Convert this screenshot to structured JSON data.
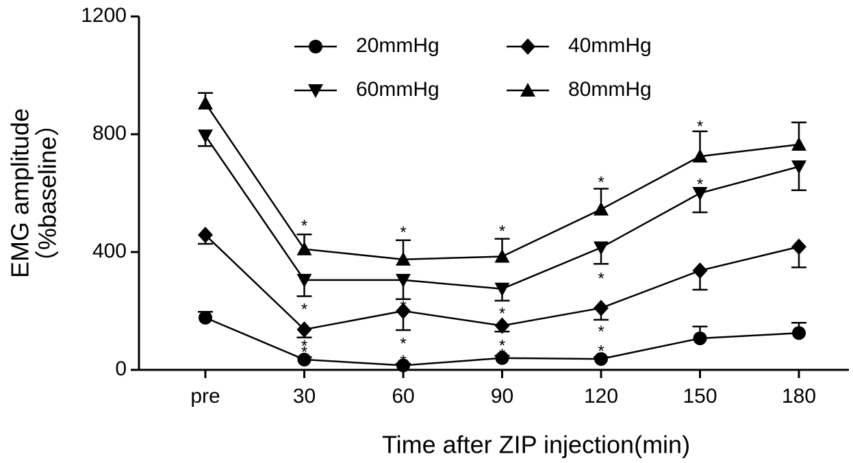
{
  "chart_data": {
    "type": "line",
    "x_label": "Time after ZIP injection(min)",
    "y_label": [
      "EMG amplitude",
      "（%baseline）"
    ],
    "categories": [
      "pre",
      "30",
      "60",
      "90",
      "120",
      "150",
      "180"
    ],
    "ylim": [
      0,
      1200
    ],
    "yticks": [
      0,
      400,
      800,
      1200
    ],
    "series": [
      {
        "name": "20mmHg",
        "color": "#000000",
        "marker": "circle",
        "error_side": "up",
        "values": [
          177,
          35,
          15,
          40,
          37,
          107,
          125
        ],
        "errors": [
          20,
          8,
          6,
          8,
          6,
          40,
          35
        ]
      },
      {
        "name": "40mmHg",
        "color": "#000000",
        "marker": "diamond",
        "error_side": "down",
        "values": [
          458,
          137,
          200,
          150,
          210,
          337,
          418
        ],
        "errors": [
          30,
          27,
          65,
          20,
          40,
          65,
          70
        ]
      },
      {
        "name": "60mmHg",
        "color": "#000000",
        "marker": "triangle-down",
        "error_side": "down",
        "values": [
          795,
          305,
          305,
          275,
          415,
          600,
          690
        ],
        "errors": [
          35,
          55,
          65,
          40,
          55,
          65,
          80
        ]
      },
      {
        "name": "80mmHg",
        "color": "#000000",
        "marker": "triangle-up",
        "error_side": "up",
        "values": [
          905,
          410,
          375,
          385,
          545,
          725,
          765
        ],
        "errors": [
          35,
          50,
          65,
          60,
          70,
          85,
          75
        ]
      }
    ],
    "legend_order": [
      0,
      2,
      1,
      3
    ],
    "annotations": [
      {
        "text": "*",
        "x": "30",
        "y": 500
      },
      {
        "text": "*",
        "x": "30",
        "y": 216
      },
      {
        "text": "*",
        "x": "30",
        "y": 92
      },
      {
        "text": "*",
        "x": "30",
        "y": 70
      },
      {
        "text": "*",
        "x": "60",
        "y": 477
      },
      {
        "text": "*",
        "x": "60",
        "y": 225
      },
      {
        "text": "*",
        "x": "60",
        "y": 100
      },
      {
        "text": "*",
        "x": "60",
        "y": 40
      },
      {
        "text": "*",
        "x": "90",
        "y": 481
      },
      {
        "text": "*",
        "x": "90",
        "y": 202
      },
      {
        "text": "*",
        "x": "90",
        "y": 93
      },
      {
        "text": "*",
        "x": "90",
        "y": 63
      },
      {
        "text": "*",
        "x": "120",
        "y": 647
      },
      {
        "text": "*",
        "x": "120",
        "y": 321
      },
      {
        "text": "*",
        "x": "120",
        "y": 140
      },
      {
        "text": "*",
        "x": "120",
        "y": 74
      },
      {
        "text": "*",
        "x": "150",
        "y": 837
      },
      {
        "text": "*",
        "x": "150",
        "y": 640
      }
    ]
  }
}
